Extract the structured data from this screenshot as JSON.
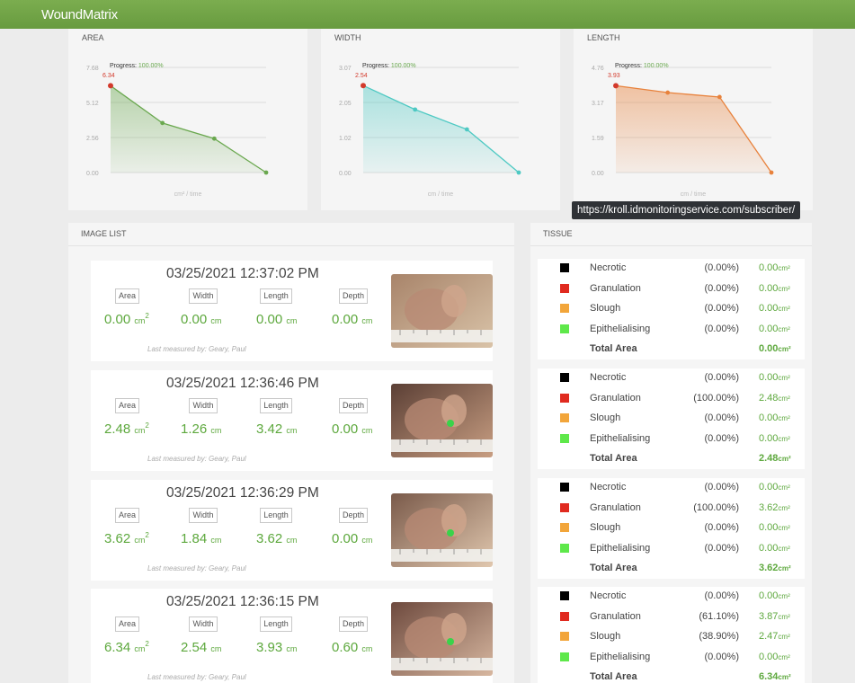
{
  "header": {
    "logo_text": "WoundMatrix",
    "brand_color": "#72a447"
  },
  "charts": [
    {
      "title": "AREA",
      "progress_label": "Progress:",
      "progress_value": "100.00%",
      "yticks": [
        "7.68",
        "5.12",
        "2.56",
        "0.00"
      ],
      "first_label": "6.34",
      "xlabel": "cm² / time",
      "color": "#6aa84f"
    },
    {
      "title": "WIDTH",
      "progress_label": "Progress:",
      "progress_value": "100.00%",
      "yticks": [
        "3.07",
        "2.05",
        "1.02",
        "0.00"
      ],
      "first_label": "2.54",
      "xlabel": "cm / time",
      "color": "#4ec9c3"
    },
    {
      "title": "LENGTH",
      "progress_label": "Progress:",
      "progress_value": "100.00%",
      "yticks": [
        "4.76",
        "3.17",
        "1.59",
        "0.00"
      ],
      "first_label": "3.93",
      "xlabel": "cm / time",
      "color": "#e8823c"
    }
  ],
  "chart_data": [
    {
      "type": "area",
      "title": "AREA",
      "ylim": [
        0,
        7.68
      ],
      "x": [
        1,
        2,
        3,
        4
      ],
      "values": [
        6.34,
        3.62,
        2.48,
        0.0
      ],
      "xlabel": "cm² / time",
      "grid": true
    },
    {
      "type": "area",
      "title": "WIDTH",
      "ylim": [
        0,
        3.07
      ],
      "x": [
        1,
        2,
        3,
        4
      ],
      "values": [
        2.54,
        1.84,
        1.26,
        0.0
      ],
      "xlabel": "cm / time",
      "grid": true
    },
    {
      "type": "area",
      "title": "LENGTH",
      "ylim": [
        0,
        4.76
      ],
      "x": [
        1,
        2,
        3,
        4
      ],
      "values": [
        3.93,
        3.62,
        3.42,
        0.0
      ],
      "xlabel": "cm / time",
      "grid": true
    }
  ],
  "tooltip": {
    "text": "https://kroll.idmonitoringservice.com/subscriber/"
  },
  "image_list": {
    "title": "IMAGE LIST",
    "labels": {
      "area": "Area",
      "width": "Width",
      "length": "Length",
      "depth": "Depth"
    },
    "items": [
      {
        "date": "03/25/2021 12:37:02 PM",
        "area": "0.00",
        "width": "0.00",
        "length": "0.00",
        "depth": "0.00",
        "area_unit": "cm",
        "unit": "cm",
        "measured_by": "Last measured by: Geary, Paul"
      },
      {
        "date": "03/25/2021 12:36:46 PM",
        "area": "2.48",
        "width": "1.26",
        "length": "3.42",
        "depth": "0.00",
        "area_unit": "cm",
        "unit": "cm",
        "measured_by": "Last measured by: Geary, Paul"
      },
      {
        "date": "03/25/2021 12:36:29 PM",
        "area": "3.62",
        "width": "1.84",
        "length": "3.62",
        "depth": "0.00",
        "area_unit": "cm",
        "unit": "cm",
        "measured_by": "Last measured by: Geary, Paul"
      },
      {
        "date": "03/25/2021 12:36:15 PM",
        "area": "6.34",
        "width": "2.54",
        "length": "3.93",
        "depth": "0.60",
        "area_unit": "cm",
        "unit": "cm",
        "measured_by": "Last measured by: Geary, Paul"
      }
    ]
  },
  "tissue": {
    "title": "TISSUE",
    "colors": {
      "Necrotic": "#000000",
      "Granulation": "#e02a1f",
      "Slough": "#f2a53a",
      "Epithelialising": "#5ee84a"
    },
    "unit": "cm²",
    "total_label": "Total Area",
    "groups": [
      {
        "rows": [
          {
            "name": "Necrotic",
            "pct": "(0.00%)",
            "area": "0.00"
          },
          {
            "name": "Granulation",
            "pct": "(0.00%)",
            "area": "0.00"
          },
          {
            "name": "Slough",
            "pct": "(0.00%)",
            "area": "0.00"
          },
          {
            "name": "Epithelialising",
            "pct": "(0.00%)",
            "area": "0.00"
          }
        ],
        "total": "0.00"
      },
      {
        "rows": [
          {
            "name": "Necrotic",
            "pct": "(0.00%)",
            "area": "0.00"
          },
          {
            "name": "Granulation",
            "pct": "(100.00%)",
            "area": "2.48"
          },
          {
            "name": "Slough",
            "pct": "(0.00%)",
            "area": "0.00"
          },
          {
            "name": "Epithelialising",
            "pct": "(0.00%)",
            "area": "0.00"
          }
        ],
        "total": "2.48"
      },
      {
        "rows": [
          {
            "name": "Necrotic",
            "pct": "(0.00%)",
            "area": "0.00"
          },
          {
            "name": "Granulation",
            "pct": "(100.00%)",
            "area": "3.62"
          },
          {
            "name": "Slough",
            "pct": "(0.00%)",
            "area": "0.00"
          },
          {
            "name": "Epithelialising",
            "pct": "(0.00%)",
            "area": "0.00"
          }
        ],
        "total": "3.62"
      },
      {
        "rows": [
          {
            "name": "Necrotic",
            "pct": "(0.00%)",
            "area": "0.00"
          },
          {
            "name": "Granulation",
            "pct": "(61.10%)",
            "area": "3.87"
          },
          {
            "name": "Slough",
            "pct": "(38.90%)",
            "area": "2.47"
          },
          {
            "name": "Epithelialising",
            "pct": "(0.00%)",
            "area": "0.00"
          }
        ],
        "total": "6.34"
      }
    ]
  }
}
